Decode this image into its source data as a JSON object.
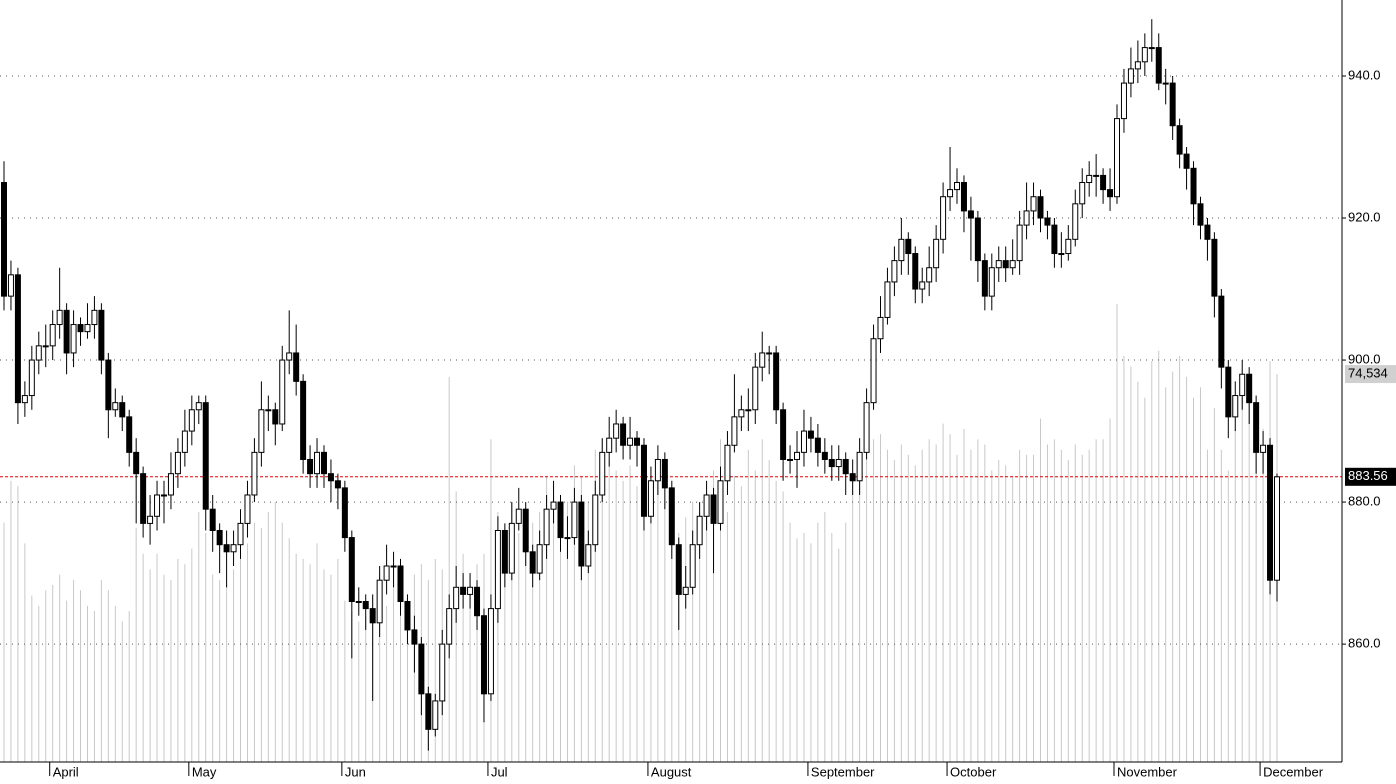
{
  "chart_data": {
    "type": "candlestick",
    "categories": [
      null,
      null,
      null,
      null,
      null,
      null,
      null,
      "April",
      null,
      null,
      null,
      null,
      null,
      null,
      null,
      null,
      null,
      null,
      null,
      null,
      null,
      null,
      null,
      null,
      null,
      null,
      null,
      "May",
      null,
      null,
      null,
      null,
      null,
      null,
      null,
      null,
      null,
      null,
      null,
      null,
      null,
      null,
      null,
      null,
      null,
      null,
      null,
      null,
      null,
      "Jun",
      null,
      null,
      null,
      null,
      null,
      null,
      null,
      null,
      null,
      null,
      null,
      null,
      null,
      null,
      null,
      null,
      null,
      null,
      null,
      null,
      "Jul",
      null,
      null,
      null,
      null,
      null,
      null,
      null,
      null,
      null,
      null,
      null,
      null,
      null,
      null,
      null,
      null,
      null,
      null,
      null,
      null,
      null,
      null,
      "August",
      null,
      null,
      null,
      null,
      null,
      null,
      null,
      null,
      null,
      null,
      null,
      null,
      null,
      null,
      null,
      null,
      null,
      null,
      null,
      null,
      null,
      null,
      "September",
      null,
      null,
      null,
      null,
      null,
      null,
      null,
      null,
      null,
      null,
      null,
      null,
      null,
      null,
      null,
      null,
      null,
      null,
      null,
      "October",
      null,
      null,
      null,
      null,
      null,
      null,
      null,
      null,
      null,
      null,
      null,
      null,
      null,
      null,
      null,
      null,
      null,
      null,
      null,
      null,
      null,
      null,
      null,
      "November",
      null,
      null,
      null,
      null,
      null,
      null,
      null,
      null,
      null,
      null,
      null,
      null,
      null,
      null,
      null,
      null,
      null,
      null,
      null,
      null,
      "December",
      null,
      null
    ],
    "open": [
      925,
      909,
      912,
      894,
      895,
      900,
      902,
      902,
      905,
      907,
      901,
      905,
      904,
      905,
      907,
      900,
      893,
      894,
      892,
      887,
      884,
      877,
      878,
      881,
      881,
      884,
      887,
      890,
      893,
      894,
      879,
      876,
      874,
      873,
      874,
      877,
      881,
      887,
      893,
      893,
      891,
      900,
      901,
      897,
      886,
      884,
      887,
      884,
      883,
      882,
      875,
      866,
      866,
      865,
      863,
      869,
      871,
      871,
      866,
      862,
      860,
      853,
      848,
      852,
      860,
      865,
      868,
      867,
      868,
      864,
      853,
      865,
      876,
      870,
      877,
      879,
      873,
      870,
      874,
      879,
      880,
      875,
      875,
      880,
      871,
      874,
      881,
      887,
      889,
      891,
      888,
      889,
      888,
      878,
      883,
      886,
      882,
      874,
      867,
      868,
      874,
      878,
      881,
      877,
      883,
      888,
      892,
      893,
      893,
      899,
      901,
      901,
      893,
      886,
      886,
      887,
      890,
      889,
      887,
      886,
      885,
      886,
      884,
      883,
      887,
      894,
      903,
      906,
      911,
      914,
      917,
      915,
      910,
      911,
      913,
      917,
      923,
      924,
      925,
      921,
      920,
      914,
      909,
      913,
      914,
      913,
      914,
      919,
      921,
      923,
      920,
      919,
      915,
      915,
      917,
      922,
      925,
      926,
      926,
      924,
      923,
      934,
      939,
      941,
      942,
      944,
      944,
      939,
      939,
      933,
      929,
      927,
      922,
      919,
      917,
      909,
      899,
      892,
      895,
      898,
      894,
      887,
      888,
      869
    ],
    "high": [
      928,
      914,
      913,
      897,
      902,
      904,
      905,
      907,
      913,
      908,
      907,
      906,
      908,
      909,
      908,
      901,
      896,
      895,
      893,
      889,
      885,
      881,
      883,
      883,
      887,
      889,
      893,
      895,
      895,
      895,
      881,
      877,
      876,
      876,
      879,
      883,
      889,
      897,
      895,
      894,
      902,
      907,
      905,
      898,
      888,
      889,
      888,
      886,
      884,
      883,
      876,
      868,
      867,
      867,
      871,
      874,
      873,
      872,
      867,
      864,
      861,
      854,
      853,
      862,
      867,
      871,
      870,
      870,
      869,
      865,
      867,
      878,
      877,
      880,
      882,
      880,
      874,
      876,
      881,
      883,
      881,
      878,
      882,
      881,
      876,
      883,
      889,
      892,
      893,
      892,
      892,
      890,
      889,
      885,
      888,
      887,
      883,
      875,
      871,
      876,
      880,
      883,
      882,
      885,
      890,
      898,
      895,
      896,
      901,
      904,
      902,
      902,
      894,
      888,
      890,
      893,
      892,
      891,
      889,
      888,
      888,
      887,
      886,
      889,
      896,
      905,
      909,
      913,
      916,
      920,
      918,
      916,
      913,
      916,
      919,
      925,
      930,
      927,
      926,
      923,
      921,
      915,
      915,
      916,
      916,
      917,
      921,
      925,
      925,
      924,
      921,
      920,
      918,
      919,
      924,
      927,
      928,
      929,
      927,
      927,
      936,
      941,
      944,
      945,
      946,
      948,
      946,
      941,
      940,
      934,
      930,
      928,
      923,
      920,
      918,
      910,
      900,
      897,
      900,
      899,
      895,
      890,
      889,
      884
    ],
    "low": [
      907,
      907,
      891,
      892,
      893,
      898,
      899,
      900,
      903,
      898,
      899,
      902,
      903,
      903,
      898,
      889,
      892,
      890,
      885,
      877,
      875,
      874,
      876,
      877,
      879,
      882,
      885,
      888,
      891,
      876,
      873,
      870,
      868,
      871,
      872,
      875,
      880,
      885,
      890,
      888,
      890,
      898,
      895,
      884,
      882,
      882,
      882,
      880,
      879,
      873,
      858,
      864,
      862,
      852,
      861,
      867,
      868,
      864,
      860,
      856,
      850,
      845,
      847,
      850,
      858,
      863,
      865,
      865,
      862,
      849,
      852,
      863,
      868,
      869,
      876,
      871,
      868,
      869,
      872,
      877,
      873,
      872,
      874,
      869,
      870,
      873,
      880,
      885,
      887,
      886,
      886,
      885,
      876,
      877,
      881,
      879,
      872,
      862,
      865,
      867,
      872,
      876,
      870,
      876,
      881,
      887,
      890,
      890,
      891,
      897,
      898,
      891,
      883,
      884,
      882,
      885,
      887,
      885,
      884,
      883,
      883,
      881,
      881,
      881,
      886,
      893,
      901,
      905,
      909,
      912,
      912,
      908,
      908,
      909,
      911,
      915,
      921,
      922,
      918,
      914,
      911,
      907,
      907,
      911,
      911,
      912,
      912,
      917,
      919,
      918,
      917,
      913,
      913,
      914,
      916,
      920,
      923,
      923,
      922,
      921,
      922,
      932,
      937,
      939,
      940,
      942,
      938,
      936,
      931,
      927,
      924,
      919,
      917,
      914,
      906,
      896,
      889,
      890,
      893,
      891,
      884,
      884,
      867,
      866
    ],
    "close": [
      909,
      912,
      894,
      895,
      900,
      902,
      902,
      905,
      907,
      901,
      905,
      904,
      905,
      907,
      900,
      893,
      894,
      892,
      887,
      884,
      877,
      878,
      881,
      881,
      884,
      887,
      890,
      893,
      894,
      879,
      876,
      874,
      873,
      874,
      877,
      881,
      887,
      893,
      893,
      891,
      900,
      901,
      897,
      886,
      884,
      887,
      884,
      883,
      882,
      875,
      866,
      866,
      865,
      863,
      869,
      871,
      871,
      866,
      862,
      860,
      853,
      848,
      852,
      860,
      865,
      868,
      867,
      868,
      864,
      853,
      865,
      876,
      870,
      877,
      879,
      873,
      870,
      874,
      879,
      880,
      875,
      875,
      880,
      871,
      874,
      881,
      887,
      889,
      891,
      888,
      889,
      888,
      878,
      883,
      886,
      882,
      874,
      867,
      868,
      874,
      878,
      881,
      877,
      883,
      888,
      892,
      893,
      893,
      899,
      901,
      901,
      893,
      886,
      886,
      887,
      890,
      889,
      887,
      886,
      885,
      886,
      884,
      883,
      887,
      894,
      903,
      906,
      911,
      914,
      917,
      915,
      910,
      911,
      913,
      917,
      923,
      924,
      925,
      921,
      920,
      914,
      909,
      913,
      914,
      913,
      914,
      919,
      921,
      923,
      920,
      919,
      915,
      915,
      917,
      922,
      925,
      926,
      926,
      924,
      923,
      934,
      939,
      941,
      942,
      944,
      944,
      939,
      939,
      933,
      929,
      927,
      922,
      919,
      917,
      909,
      899,
      892,
      895,
      898,
      894,
      887,
      888,
      869,
      883.56
    ],
    "up_color": "#ffffff",
    "down_color": "#000000",
    "ylim": [
      843.4,
      950.7
    ],
    "yticks": [
      {
        "value": 860,
        "label": "860.0"
      },
      {
        "value": 880,
        "label": "880.0"
      },
      {
        "value": 900,
        "label": "900.0"
      },
      {
        "value": 920,
        "label": "920.0"
      },
      {
        "value": 940,
        "label": "940.0"
      }
    ],
    "grid": true,
    "last_line_color": "#e00000",
    "volume": {
      "color": "#c8c8c8",
      "ylim": [
        0,
        146400
      ],
      "values": [
        46000,
        54000,
        53000,
        42000,
        32000,
        30000,
        33000,
        34000,
        36000,
        31000,
        35000,
        33000,
        30000,
        29000,
        35000,
        33000,
        30000,
        27000,
        29000,
        45000,
        40000,
        37000,
        40000,
        36000,
        35000,
        39000,
        38000,
        41000,
        48000,
        44000,
        36000,
        35000,
        34000,
        37000,
        40000,
        42000,
        46000,
        45000,
        48000,
        50000,
        46000,
        43000,
        40000,
        39000,
        38000,
        42000,
        37000,
        36000,
        39000,
        31000,
        29000,
        27000,
        28000,
        32000,
        36000,
        30000,
        34000,
        33000,
        29000,
        36000,
        38000,
        35000,
        39000,
        37000,
        74000,
        52000,
        40000,
        36000,
        38000,
        40000,
        62000,
        48000,
        45000,
        50000,
        44000,
        42000,
        46000,
        48000,
        55000,
        52000,
        46000,
        50000,
        57000,
        55000,
        50000,
        60000,
        62000,
        58000,
        56000,
        54000,
        57000,
        53000,
        52000,
        49000,
        55000,
        50000,
        52000,
        44000,
        47000,
        50000,
        48000,
        52000,
        56000,
        62000,
        48000,
        55000,
        53000,
        60000,
        56000,
        62000,
        58000,
        54000,
        52000,
        46000,
        43000,
        44000,
        42000,
        46000,
        48000,
        44000,
        41000,
        46000,
        52000,
        58000,
        60000,
        62000,
        63000,
        60000,
        58000,
        61000,
        59000,
        57000,
        60000,
        62000,
        61000,
        65000,
        63000,
        59000,
        64000,
        60000,
        62000,
        61000,
        56000,
        58000,
        57000,
        55000,
        60000,
        59000,
        59000,
        66000,
        61000,
        62000,
        60000,
        58000,
        61000,
        59000,
        60000,
        62000,
        62000,
        66000,
        88000,
        78000,
        76000,
        73000,
        70000,
        77000,
        79000,
        72000,
        75000,
        78000,
        74000,
        70000,
        72000,
        60000,
        68000,
        60000,
        56000,
        64000,
        70000,
        69000,
        62000,
        64000,
        77000,
        74534
      ],
      "value_labels": [
        null,
        null,
        null,
        null,
        null,
        null,
        null,
        null,
        null,
        null,
        null,
        null,
        null,
        null,
        null,
        null,
        null,
        null,
        null,
        null,
        null,
        null,
        null,
        null,
        null,
        null,
        null,
        null,
        null,
        null,
        null,
        null,
        null,
        null,
        null,
        null,
        null,
        null,
        null,
        null,
        null,
        null,
        null,
        null,
        null,
        null,
        null,
        null,
        null,
        null,
        null,
        null,
        null,
        null,
        null,
        null,
        null,
        null,
        null,
        null,
        null,
        null,
        null,
        null,
        null,
        null,
        null,
        null,
        null,
        null,
        null,
        null,
        null,
        null,
        null,
        null,
        null,
        null,
        null,
        null,
        null,
        null,
        null,
        null,
        null,
        null,
        null,
        null,
        null,
        null,
        null,
        null,
        null,
        null,
        null,
        null,
        null,
        null,
        null,
        null,
        null,
        null,
        null,
        null,
        null,
        null,
        null,
        null,
        null,
        null,
        null,
        null,
        null,
        null,
        null,
        null,
        null,
        null,
        null,
        null,
        null,
        null,
        null,
        null,
        null,
        null,
        null,
        null,
        null,
        null,
        null,
        null,
        null,
        null,
        null,
        null,
        null,
        null,
        null,
        null,
        null,
        null,
        null,
        null,
        null,
        null,
        null,
        null,
        null,
        null,
        null,
        null,
        null,
        null,
        null,
        null,
        null,
        null,
        null,
        null,
        null,
        null,
        null,
        null,
        null,
        null,
        null,
        null,
        null,
        null,
        null,
        null,
        null,
        null,
        null,
        null,
        null,
        null,
        null,
        null,
        null,
        null,
        null,
        "74,534"
      ]
    }
  }
}
